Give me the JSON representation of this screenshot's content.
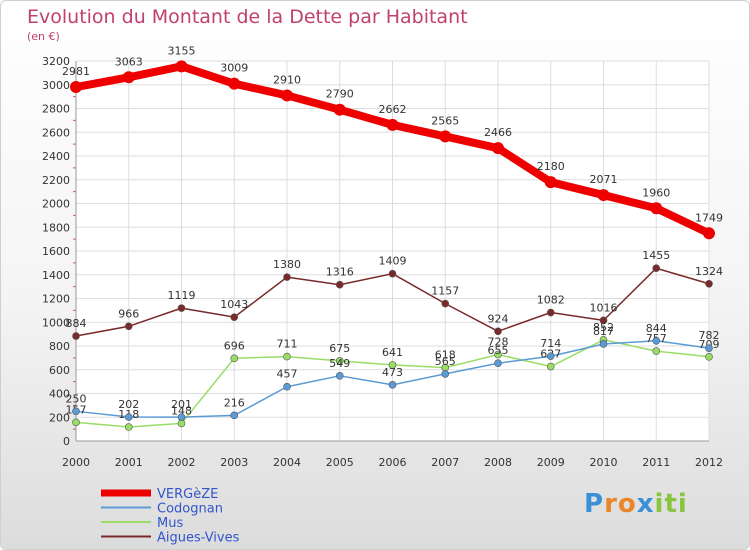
{
  "chart_data": {
    "type": "line",
    "title": "Evolution du Montant de la Dette par Habitant",
    "subtitle": "(en €)",
    "x": [
      "2000",
      "2001",
      "2002",
      "2003",
      "2004",
      "2005",
      "2006",
      "2007",
      "2008",
      "2009",
      "2010",
      "2011",
      "2012"
    ],
    "ylim": [
      0,
      3200
    ],
    "yticks": [
      0,
      200,
      400,
      600,
      800,
      1000,
      1200,
      1400,
      1600,
      1800,
      2000,
      2200,
      2400,
      2600,
      2800,
      3000,
      3200
    ],
    "grid": true,
    "legend_position": "bottom-left",
    "series": [
      {
        "name": "VERGèZE",
        "color": "#ee0000",
        "values": [
          2981,
          3063,
          3155,
          3009,
          2910,
          2790,
          2662,
          2565,
          2466,
          2180,
          2071,
          1960,
          1749
        ],
        "labels": [
          "2981",
          "3063",
          "3155",
          "3009",
          "2910",
          "2790",
          "2662",
          "2565",
          "2466",
          "2180",
          "2071",
          "1960",
          "1749"
        ]
      },
      {
        "name": "Codognan",
        "color": "#5b9bd5",
        "values": [
          250,
          202,
          201,
          216,
          457,
          549,
          473,
          565,
          655,
          714,
          817,
          844,
          782
        ],
        "labels": [
          "250",
          "202",
          "201",
          "216",
          "457",
          "549",
          "473",
          "565",
          "655",
          "714",
          "817",
          "844",
          "782"
        ]
      },
      {
        "name": "Mus",
        "color": "#99dd66",
        "values": [
          157,
          118,
          148,
          696,
          711,
          675,
          641,
          618,
          728,
          627,
          852,
          757,
          709
        ],
        "labels": [
          "157",
          "118",
          "148",
          "696",
          "711",
          "675",
          "641",
          "618",
          "728",
          "627",
          "852",
          "757",
          "709"
        ]
      },
      {
        "name": "Aigues-Vives",
        "color": "#7a2a2a",
        "values": [
          884,
          966,
          1119,
          1043,
          1380,
          1316,
          1409,
          1157,
          924,
          1082,
          1016,
          1455,
          1324
        ],
        "labels": [
          "884",
          "966",
          "1119",
          "1043",
          "1380",
          "1316",
          "1409",
          "1157",
          "924",
          "1082",
          "1016",
          "1455",
          "1324"
        ]
      }
    ]
  },
  "logo": {
    "letters": [
      "P",
      "r",
      "o",
      "x",
      "i",
      "t",
      "i"
    ],
    "colors": [
      "#3a8fd8",
      "#e8862a",
      "#e8862a",
      "#3a8fd8",
      "#88c540",
      "#88c540",
      "#88c540"
    ]
  }
}
